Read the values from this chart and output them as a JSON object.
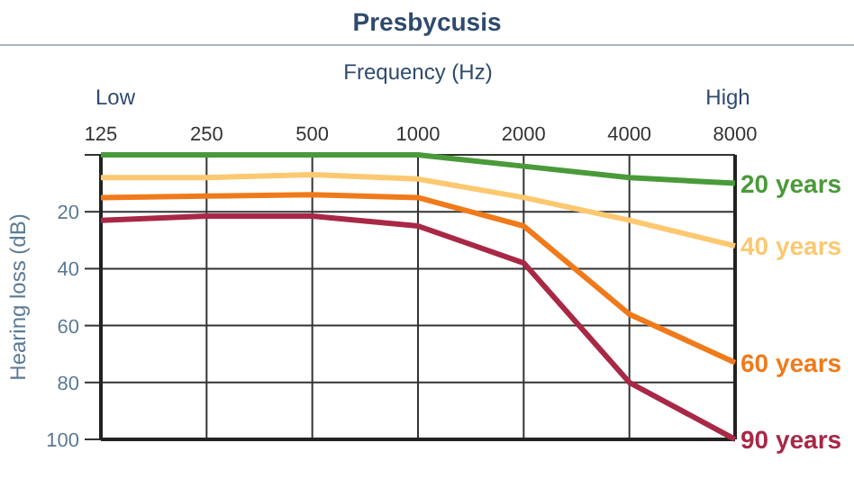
{
  "chart_data": {
    "type": "line",
    "title": "Presbycusis",
    "xlabel": "Frequency (Hz)",
    "ylabel": "Hearing loss (dB)",
    "annotations": [
      "Low",
      "High"
    ],
    "categories": [
      "125",
      "250",
      "500",
      "1000",
      "2000",
      "4000",
      "8000"
    ],
    "series": [
      {
        "name": "20 years",
        "color": "#4a9a3a",
        "values": [
          0,
          0,
          0,
          0,
          4,
          8,
          10
        ]
      },
      {
        "name": "40 years",
        "color": "#fcc870",
        "values": [
          8,
          8,
          7,
          8.5,
          15,
          23,
          32
        ]
      },
      {
        "name": "60 years",
        "color": "#f07a1a",
        "values": [
          15,
          14.5,
          14,
          15,
          25,
          56,
          73
        ]
      },
      {
        "name": "90 years",
        "color": "#a82846",
        "values": [
          23,
          21.5,
          21.5,
          25,
          38,
          80,
          100
        ]
      }
    ],
    "ylim": [
      100,
      0
    ],
    "yticks": [
      {
        "value": 0,
        "label": null
      },
      20,
      40,
      60,
      80,
      100
    ],
    "grid": true,
    "legend": false,
    "marker": "none",
    "line_style": "solid"
  }
}
